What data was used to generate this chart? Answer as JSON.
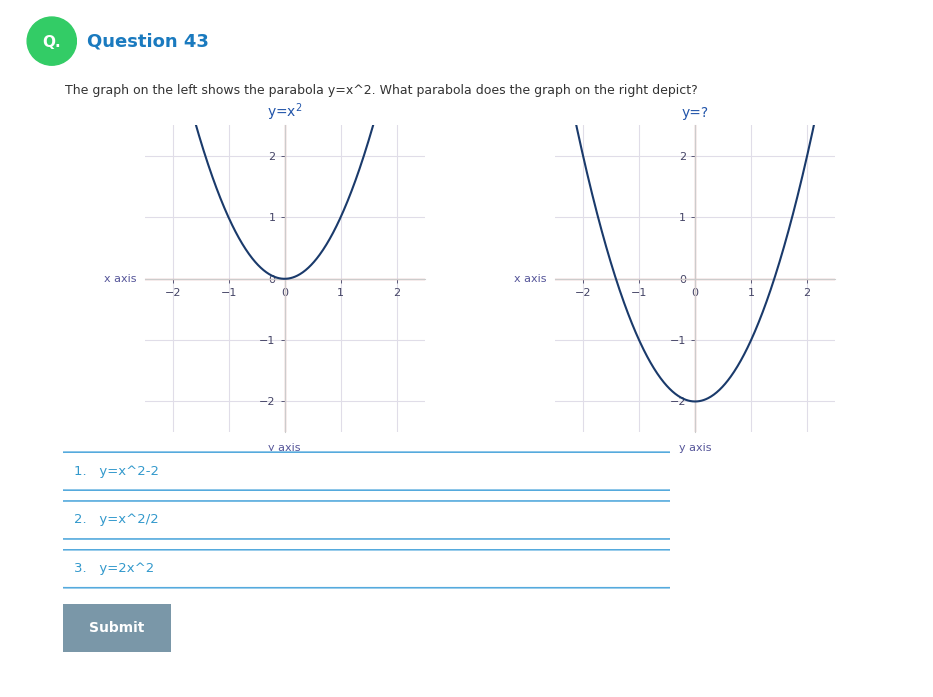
{
  "bg_color": "#ffffff",
  "question_number": "Question 43",
  "question_color": "#1a7abf",
  "question_text": "The graph on the left shows the parabola y=x^2. What parabola does the graph on the right depict?",
  "question_text_color": "#333333",
  "icon_color": "#33cc66",
  "icon_text": "Q.",
  "left_graph_title": "y=x$^2$",
  "right_graph_title": "y=?",
  "graph_title_color": "#2255aa",
  "axis_label_color": "#555599",
  "curve_color": "#1a3a6b",
  "curve_linewidth": 1.5,
  "xlim": [
    -2.5,
    2.5
  ],
  "ylim": [
    -2.5,
    2.5
  ],
  "xticks": [
    -2,
    -1,
    0,
    1,
    2
  ],
  "yticks": [
    -2,
    -1,
    0,
    1,
    2
  ],
  "grid_color": "#e0dde8",
  "border_color": "#cccccc",
  "center_axis_color": "#e8b0b0",
  "tick_label_color": "#444466",
  "x_axis_label": "x axis",
  "y_axis_label": "y axis",
  "options": [
    "1.   y=x^2-2",
    "2.   y=x^2/2",
    "3.   y=2x^2"
  ],
  "option_text_color": "#3399cc",
  "option_border_color": "#55aadd",
  "option_bg_color": "#ffffff",
  "submit_button_text": "Submit",
  "submit_button_color": "#7a97a8",
  "submit_text_color": "#ffffff"
}
